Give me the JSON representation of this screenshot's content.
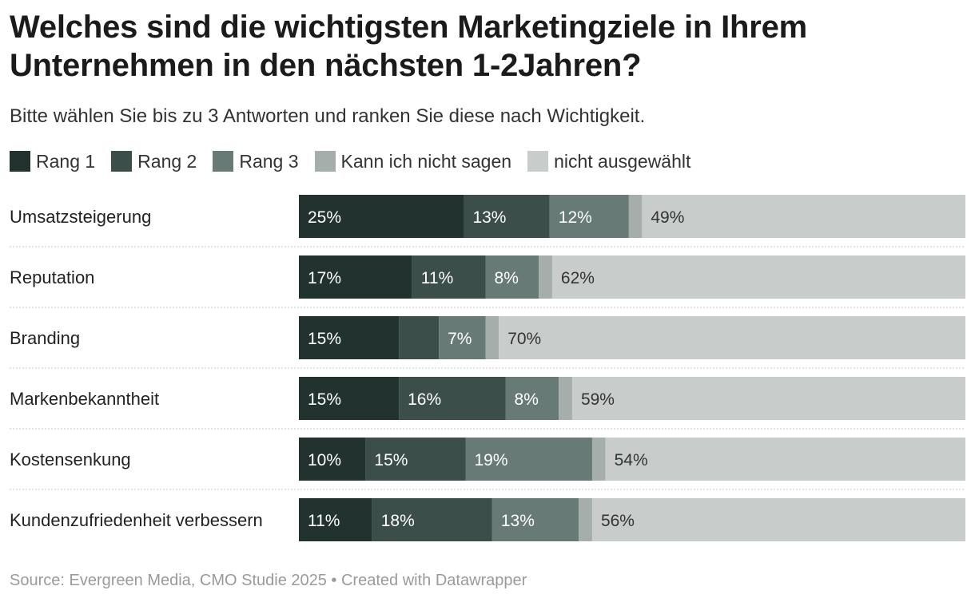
{
  "header": {
    "title": "Welches sind die wichtigsten Marketingziele in Ihrem Unternehmen in den nächsten 1-2Jahren?",
    "subtitle": "Bitte wählen Sie bis zu 3 Antworten und ranken Sie diese nach Wichtigkeit."
  },
  "footer": {
    "source": "Source: Evergreen Media, CMO Studie 2025 • Created with Datawrapper"
  },
  "colors": {
    "rang1": "#22332f",
    "rang2": "#3c4e4a",
    "rang3": "#687a76",
    "kann_nicht": "#a5aeab",
    "nicht_ausgewaehlt": "#c8cdcb",
    "divider": "#c8c8c8"
  },
  "chart_data": {
    "type": "bar",
    "orientation": "horizontal",
    "stacked": true,
    "xlim": [
      0,
      100
    ],
    "unit": "%",
    "legend_placement": "top-left",
    "categories": [
      "Umsatzsteigerung",
      "Reputation",
      "Branding",
      "Markenbekanntheit",
      "Kostensenkung",
      "Kundenzufriedenheit verbessern"
    ],
    "series": [
      {
        "name": "Rang 1",
        "color": "#22332f",
        "values": [
          25,
          17,
          15,
          15,
          10,
          11
        ],
        "labels": [
          "25%",
          "17%",
          "15%",
          "15%",
          "10%",
          "11%"
        ]
      },
      {
        "name": "Rang 2",
        "color": "#3c4e4a",
        "values": [
          13,
          11,
          6,
          16,
          15,
          18
        ],
        "labels": [
          "13%",
          "11%",
          "",
          "16%",
          "15%",
          "18%"
        ]
      },
      {
        "name": "Rang 3",
        "color": "#687a76",
        "values": [
          12,
          8,
          7,
          8,
          19,
          13
        ],
        "labels": [
          "12%",
          "8%",
          "7%",
          "8%",
          "19%",
          "13%"
        ]
      },
      {
        "name": "Kann ich nicht sagen",
        "color": "#a5aeab",
        "values": [
          2,
          2,
          2,
          2,
          2,
          2
        ],
        "labels": [
          "",
          "",
          "",
          "",
          "",
          ""
        ]
      },
      {
        "name": "nicht ausgewählt",
        "color": "#c8cdcb",
        "values": [
          49,
          62,
          70,
          59,
          54,
          56
        ],
        "labels": [
          "49%",
          "62%",
          "70%",
          "59%",
          "54%",
          "56%"
        ]
      }
    ]
  }
}
